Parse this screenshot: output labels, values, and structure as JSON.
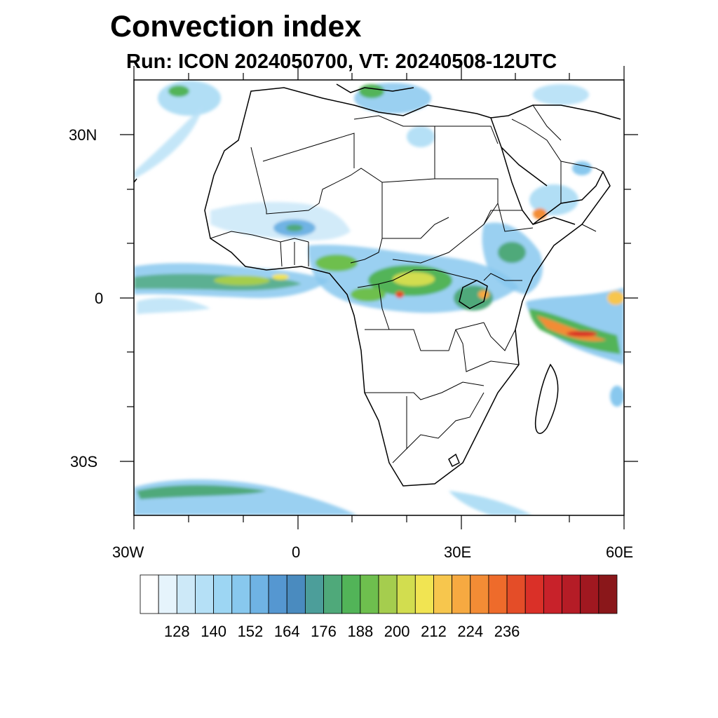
{
  "title": "Convection index",
  "subtitle": "Run: ICON 2024050700,  VT: 20240508-12UTC",
  "lat_labels": [
    "30N",
    "0",
    "30S"
  ],
  "lon_labels": [
    "30W",
    "0",
    "30E",
    "60E"
  ],
  "colorbar": {
    "colors": [
      "#ffffff",
      "#e6f4fc",
      "#cde9f8",
      "#b5e0f6",
      "#9dd6f3",
      "#88c8ee",
      "#6fb3e4",
      "#5597d1",
      "#4a8bbf",
      "#4c9e9a",
      "#4fa97a",
      "#52b458",
      "#6ebf4e",
      "#a5cd4e",
      "#d2dd4f",
      "#f1e452",
      "#f7c64d",
      "#f6a941",
      "#f38c35",
      "#ee6b2b",
      "#e44d28",
      "#da3028",
      "#c8222a",
      "#b51c26",
      "#a01820",
      "#8a171a"
    ],
    "tick_labels": [
      "128",
      "140",
      "152",
      "164",
      "176",
      "188",
      "200",
      "212",
      "224",
      "236"
    ]
  }
}
